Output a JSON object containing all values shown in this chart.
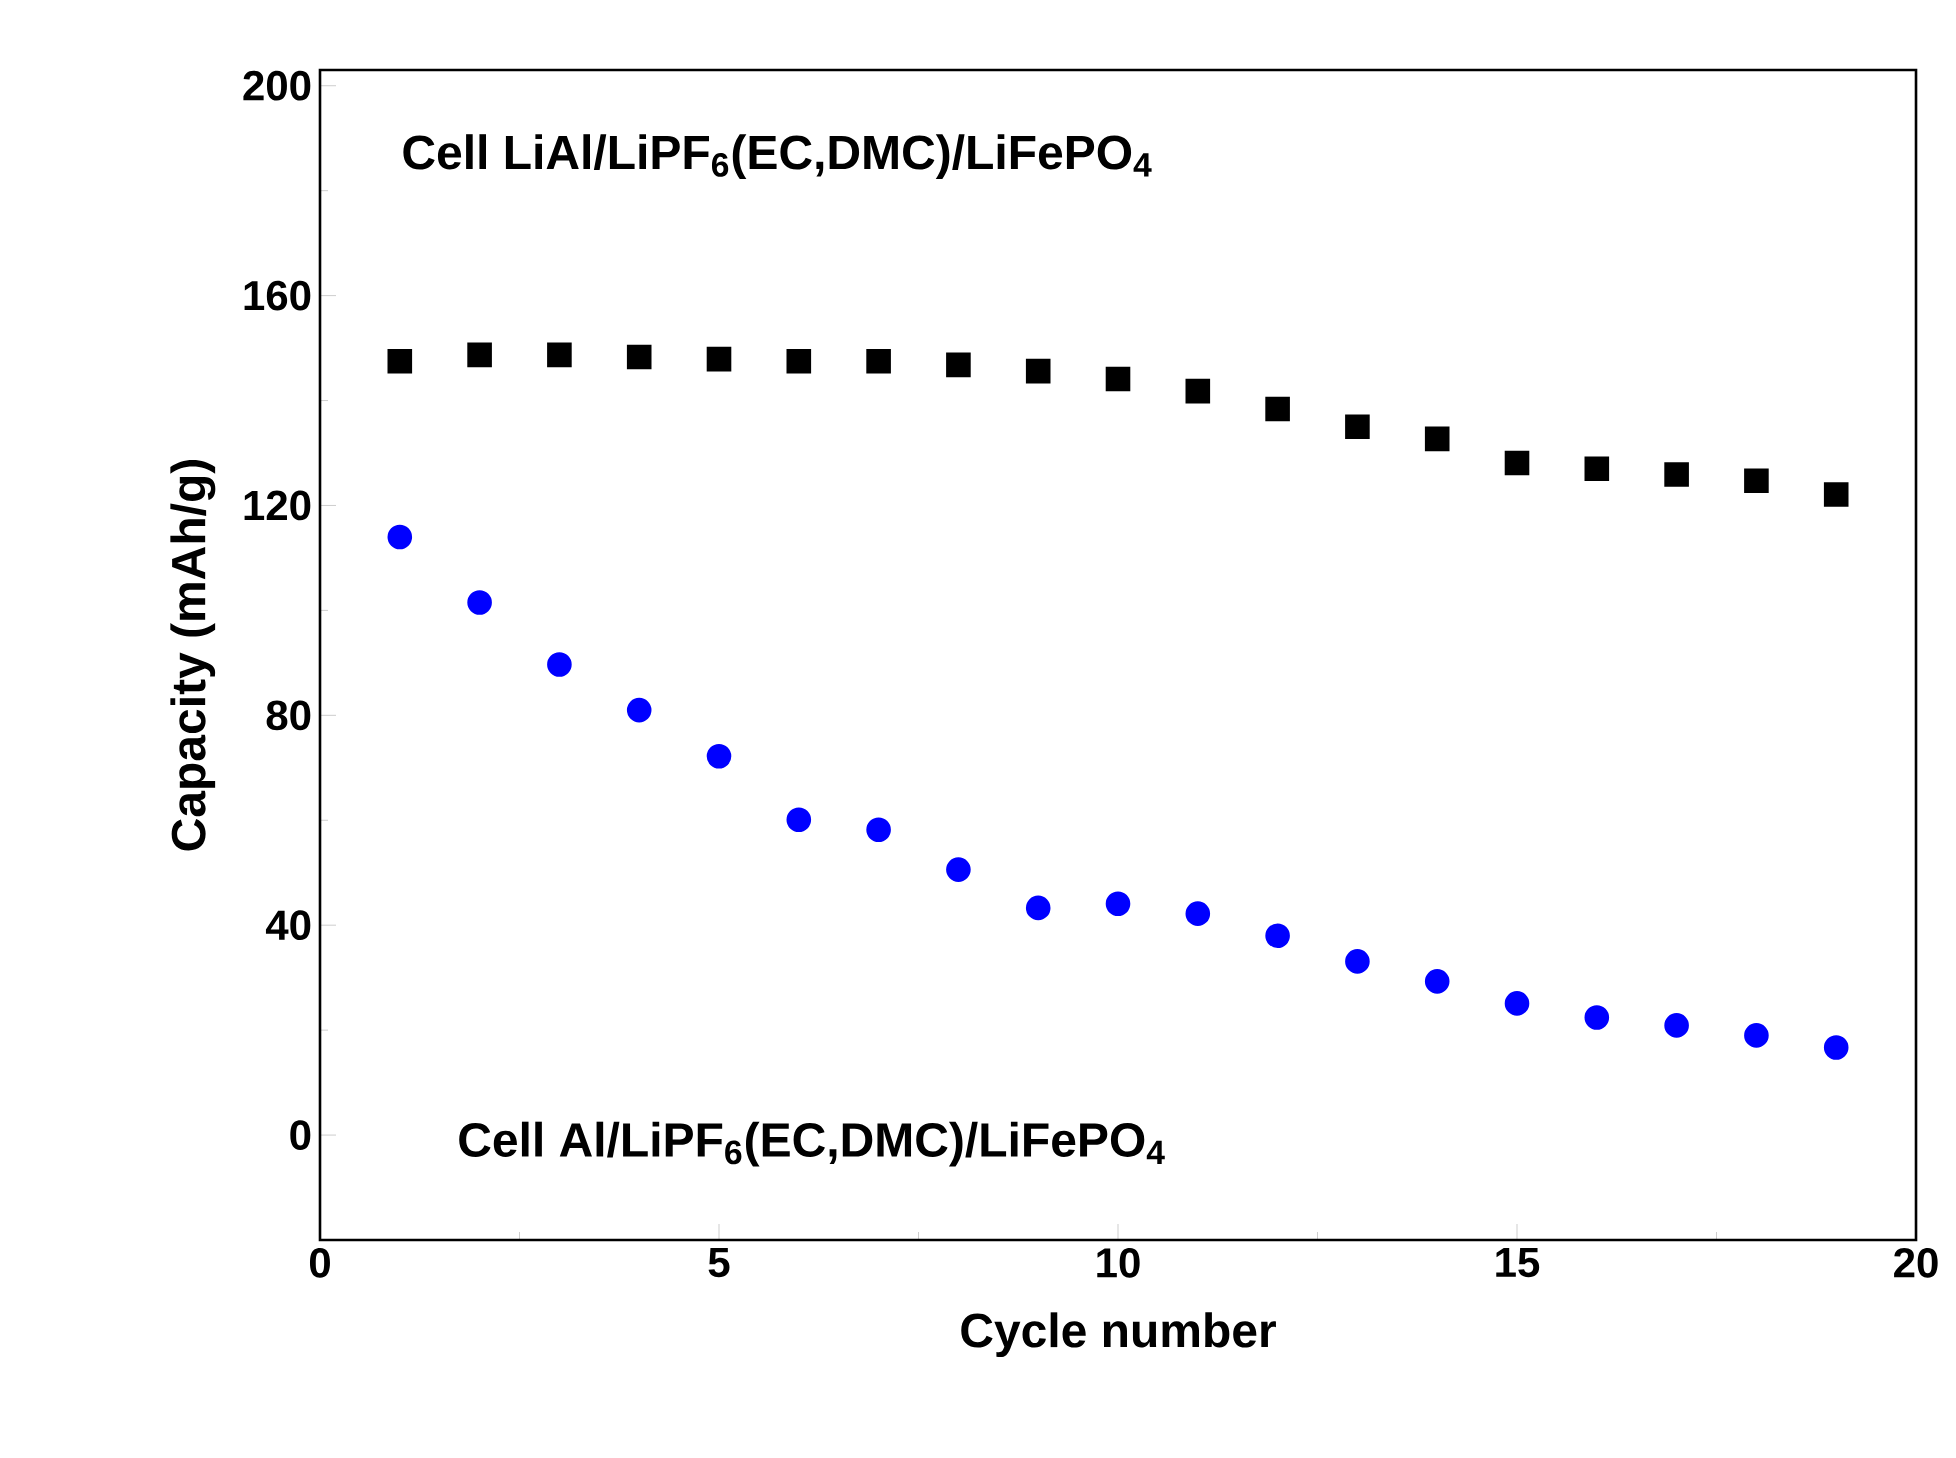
{
  "chart_data": {
    "type": "scatter",
    "xlabel": "Cycle number",
    "ylabel": "Capacity (mAh/g)",
    "xlim": [
      0,
      20
    ],
    "ylim": [
      -20,
      203
    ],
    "xticks": [
      0,
      5,
      10,
      15,
      20
    ],
    "yticks": [
      0,
      40,
      80,
      120,
      160,
      200
    ],
    "annotations": [
      "Cell LiAl/LiPF$_{6}$(EC,DMC)/LiFePO$_{4}$",
      "Cell Al/LiPF$_{6}$(EC,DMC)/LiFePO$_{4}$"
    ],
    "series": [
      {
        "color": "#000000",
        "marker": "square",
        "x": [
          1,
          2,
          3,
          4,
          5,
          6,
          7,
          8,
          9,
          10,
          11,
          12,
          13,
          14,
          15,
          16,
          17,
          18,
          19
        ],
        "values": [
          147.5,
          148.7,
          148.7,
          148.3,
          147.9,
          147.5,
          147.5,
          146.8,
          145.6,
          144.1,
          141.8,
          138.4,
          135,
          132.7,
          128.1,
          127,
          125.9,
          124.7,
          122.1
        ]
      },
      {
        "color": "#0000ff",
        "marker": "circle",
        "x": [
          1,
          2,
          3,
          4,
          5,
          6,
          7,
          8,
          9,
          10,
          11,
          12,
          13,
          14,
          15,
          16,
          17,
          18,
          19
        ],
        "values": [
          114,
          101.5,
          89.7,
          81,
          72.2,
          60.1,
          58.2,
          50.6,
          43.3,
          44.1,
          42.2,
          38,
          33.1,
          29.3,
          25.1,
          22.4,
          20.9,
          19,
          16.7
        ]
      }
    ]
  }
}
